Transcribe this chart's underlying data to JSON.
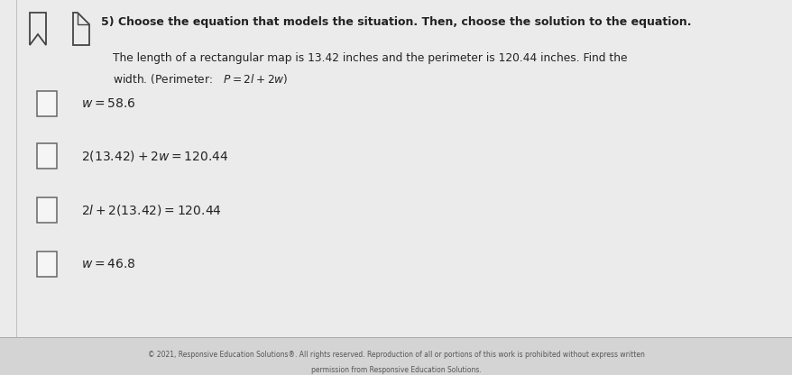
{
  "background_color": "#e2e2e2",
  "main_bg": "#ebebeb",
  "footer_bg": "#d4d4d4",
  "title_text": "5) Choose the equation that models the situation. Then, choose the solution to the equation.",
  "problem_line1": "The length of a rectangular map is 13.42 inches and the perimeter is 120.44 inches. Find the",
  "problem_line2": "width. (Perimeter:   $P = 2l + 2w$)",
  "options": [
    "$w = 58.6$",
    "$2(13.42) + 2w = 120.44$",
    "$2l + 2(13.42) = 120.44$",
    "$w = 46.8$"
  ],
  "footer_line1": "© 2021, Responsive Education Solutions®. All rights reserved. Reproduction of all or portions of this work is prohibited without express written",
  "footer_line2": "permission from Responsive Education Solutions.",
  "text_color": "#222222",
  "footer_text_color": "#555555",
  "checkbox_edge_color": "#666666",
  "checkbox_face_color": "#f5f5f5",
  "icon_color": "#444444",
  "title_fontsize": 9.0,
  "body_fontsize": 8.8,
  "option_fontsize": 10.0,
  "footer_fontsize": 5.5
}
